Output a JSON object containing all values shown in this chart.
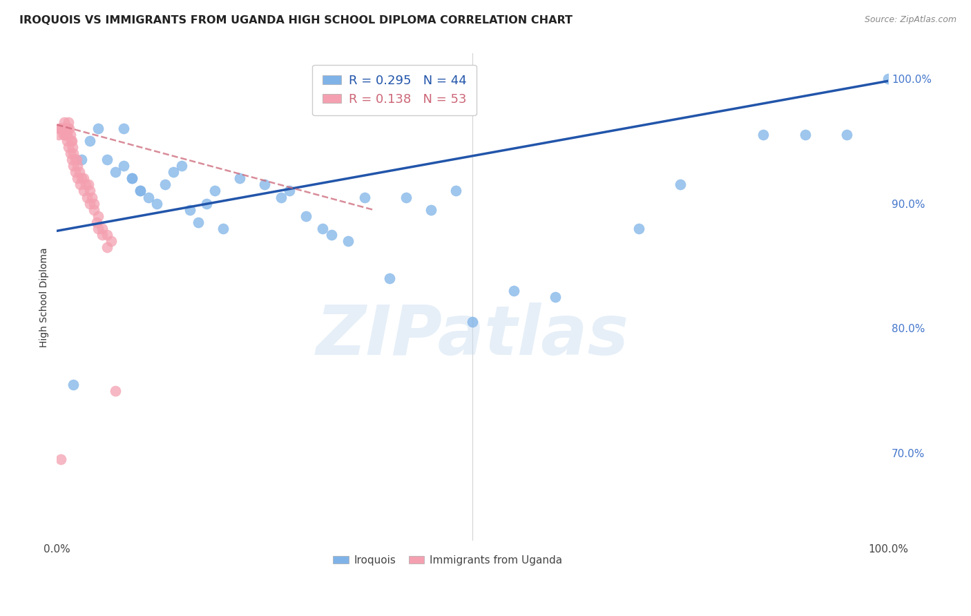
{
  "title": "IROQUOIS VS IMMIGRANTS FROM UGANDA HIGH SCHOOL DIPLOMA CORRELATION CHART",
  "source": "Source: ZipAtlas.com",
  "ylabel": "High School Diploma",
  "xlabel": "",
  "watermark": "ZIPatlas",
  "legend_blue_R": "0.295",
  "legend_blue_N": "44",
  "legend_pink_R": "0.138",
  "legend_pink_N": "53",
  "xlim": [
    0,
    1.0
  ],
  "ylim": [
    0.63,
    1.02
  ],
  "yticks": [
    0.7,
    0.8,
    0.9,
    1.0
  ],
  "xticks": [
    0.0,
    0.2,
    0.4,
    0.6,
    0.8,
    1.0
  ],
  "xtick_labels": [
    "0.0%",
    "",
    "",
    "",
    "",
    "100.0%"
  ],
  "ytick_labels": [
    "70.0%",
    "80.0%",
    "90.0%",
    "100.0%"
  ],
  "blue_x": [
    0.02,
    0.03,
    0.04,
    0.05,
    0.06,
    0.07,
    0.08,
    0.09,
    0.1,
    0.11,
    0.12,
    0.13,
    0.14,
    0.15,
    0.16,
    0.17,
    0.18,
    0.19,
    0.2,
    0.22,
    0.25,
    0.27,
    0.3,
    0.33,
    0.35,
    0.37,
    0.4,
    0.42,
    0.45,
    0.5,
    0.55,
    0.6,
    0.85,
    0.9,
    0.95,
    1.0,
    0.08,
    0.09,
    0.1,
    0.28,
    0.32,
    0.48,
    0.7,
    0.75
  ],
  "blue_y": [
    0.755,
    0.935,
    0.95,
    0.96,
    0.935,
    0.925,
    0.96,
    0.92,
    0.91,
    0.905,
    0.9,
    0.915,
    0.925,
    0.93,
    0.895,
    0.885,
    0.9,
    0.91,
    0.88,
    0.92,
    0.915,
    0.905,
    0.89,
    0.875,
    0.87,
    0.905,
    0.84,
    0.905,
    0.895,
    0.805,
    0.83,
    0.825,
    0.955,
    0.955,
    0.955,
    1.0,
    0.93,
    0.92,
    0.91,
    0.91,
    0.88,
    0.91,
    0.88,
    0.915
  ],
  "pink_x": [
    0.005,
    0.007,
    0.008,
    0.009,
    0.01,
    0.011,
    0.012,
    0.013,
    0.014,
    0.015,
    0.016,
    0.017,
    0.018,
    0.019,
    0.02,
    0.022,
    0.024,
    0.025,
    0.027,
    0.03,
    0.032,
    0.035,
    0.038,
    0.04,
    0.042,
    0.045,
    0.048,
    0.05,
    0.055,
    0.06,
    0.002,
    0.003,
    0.004,
    0.006,
    0.008,
    0.01,
    0.012,
    0.014,
    0.016,
    0.018,
    0.02,
    0.022,
    0.025,
    0.028,
    0.032,
    0.036,
    0.04,
    0.045,
    0.05,
    0.055,
    0.06,
    0.065,
    0.07
  ],
  "pink_y": [
    0.695,
    0.96,
    0.96,
    0.965,
    0.96,
    0.955,
    0.955,
    0.96,
    0.965,
    0.96,
    0.955,
    0.95,
    0.95,
    0.945,
    0.94,
    0.935,
    0.935,
    0.93,
    0.925,
    0.92,
    0.92,
    0.915,
    0.915,
    0.91,
    0.905,
    0.9,
    0.885,
    0.88,
    0.875,
    0.865,
    0.955,
    0.96,
    0.96,
    0.96,
    0.955,
    0.955,
    0.95,
    0.945,
    0.94,
    0.935,
    0.93,
    0.925,
    0.92,
    0.915,
    0.91,
    0.905,
    0.9,
    0.895,
    0.89,
    0.88,
    0.875,
    0.87,
    0.75
  ],
  "blue_color": "#7FB3E8",
  "pink_color": "#F4A0B0",
  "blue_line_color": "#2255AA",
  "pink_line_color": "#CC6677",
  "background_color": "#FFFFFF",
  "grid_color": "#CCCCCC",
  "blue_trend_x0": 0.0,
  "blue_trend_y0": 0.878,
  "blue_trend_x1": 1.0,
  "blue_trend_y1": 0.998,
  "pink_trend_x0": 0.0,
  "pink_trend_y0": 0.963,
  "pink_trend_x1": 0.38,
  "pink_trend_y1": 0.895
}
